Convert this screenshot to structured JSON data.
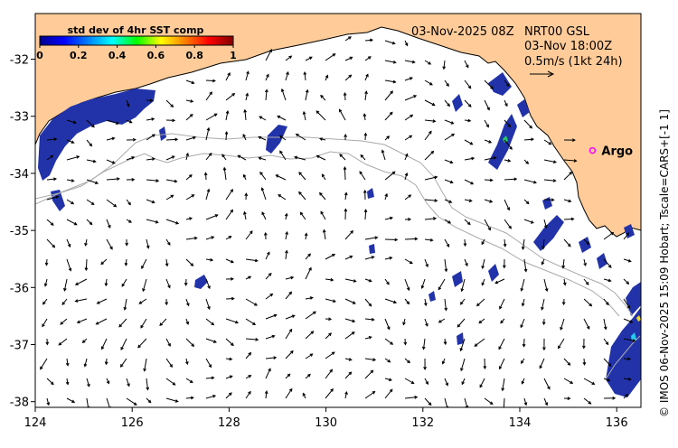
{
  "map": {
    "x_axis": {
      "range": [
        124,
        136.5
      ],
      "ticks": [
        "124",
        "126",
        "128",
        "130",
        "132",
        "134",
        "136"
      ]
    },
    "y_axis": {
      "range": [
        -38.1,
        -31.2
      ],
      "ticks": [
        "-32",
        "-33",
        "-34",
        "-35",
        "-36",
        "-37",
        "-38"
      ]
    },
    "colors": {
      "land": "#ffcc99",
      "ocean": "#ffffff",
      "bathymetry_contour": "#aaaaaa",
      "sst_low": "#2233aa",
      "argo_marker": "#ff00ff"
    }
  },
  "colorbar": {
    "title": "std dev of 4hr SST comp",
    "ticks": [
      "0",
      "0.2",
      "0.4",
      "0.6",
      "0.8",
      "1"
    ]
  },
  "annotations": {
    "date_label": "03-Nov-2025 08Z",
    "product_line1": "NRT00 GSL",
    "product_line2": "03-Nov 18:00Z",
    "scale_label": "0.5m/s (1kt 24h)"
  },
  "argo": {
    "label": "Argo",
    "lon": 135.5,
    "lat": -33.6
  },
  "credit": "© IMOS 06-Nov-2025 15:09 Hobart; Tscale=CARS+[-1 1]"
}
